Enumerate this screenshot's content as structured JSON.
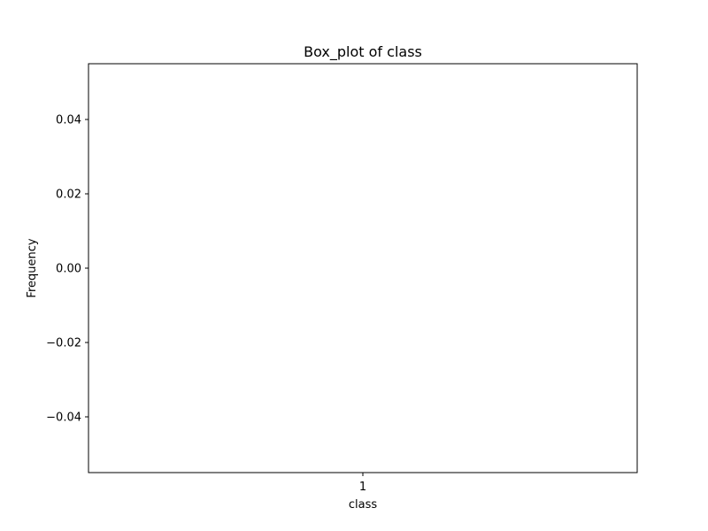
{
  "chart_data": {
    "type": "box",
    "title": "Box_plot of class",
    "xlabel": "class",
    "ylabel": "Frequency",
    "categories": [
      "1"
    ],
    "series": [],
    "ylim": [
      -0.055,
      0.055
    ],
    "yticks": [
      -0.04,
      -0.02,
      0.0,
      0.02,
      0.04
    ],
    "ytick_labels": [
      "−0.04",
      "−0.02",
      "0.00",
      "0.02",
      "0.04"
    ],
    "grid": false,
    "colors": {
      "axes": "#000000",
      "background": "#ffffff"
    }
  }
}
